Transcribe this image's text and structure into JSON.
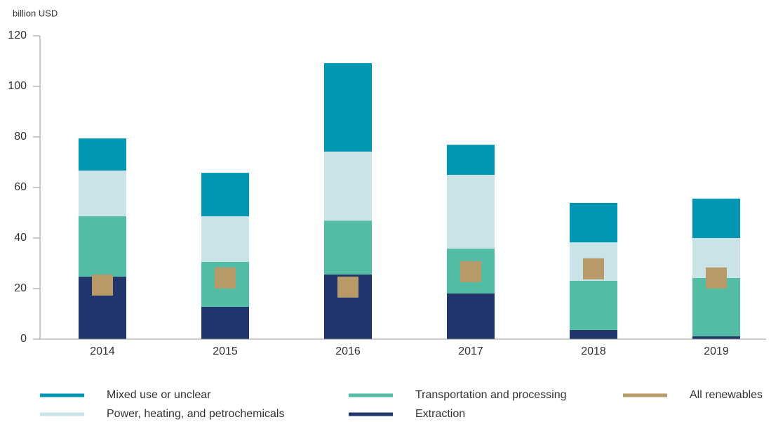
{
  "chart_data": {
    "type": "bar",
    "stacked": true,
    "ylabel": "billion USD",
    "categories": [
      "2014",
      "2015",
      "2016",
      "2017",
      "2018",
      "2019"
    ],
    "ylim": [
      0,
      120
    ],
    "yticks": [
      0,
      20,
      40,
      60,
      80,
      100,
      120
    ],
    "grid": false,
    "series": [
      {
        "name": "Extraction",
        "color": "#1f356b",
        "values": [
          24.7,
          12.8,
          25.6,
          18.1,
          3.6,
          1.1
        ]
      },
      {
        "name": "Transportation and processing",
        "color": "#52bca4",
        "values": [
          23.9,
          17.8,
          21.3,
          17.7,
          19.5,
          23.1
        ]
      },
      {
        "name": "Power, heating, and petrochemicals",
        "color": "#c9e3e6",
        "values": [
          18.1,
          18,
          27.3,
          29.2,
          15.2,
          15.8
        ]
      },
      {
        "name": "Mixed use or unclear",
        "color": "#0096b4",
        "values": [
          12.7,
          17.2,
          35,
          11.9,
          15.6,
          15.6
        ]
      },
      {
        "name": "All renewables",
        "color": "#b89a68",
        "mark": "square",
        "values": [
          21.4,
          24.2,
          20.6,
          26.7,
          27.8,
          24.2
        ]
      }
    ]
  }
}
